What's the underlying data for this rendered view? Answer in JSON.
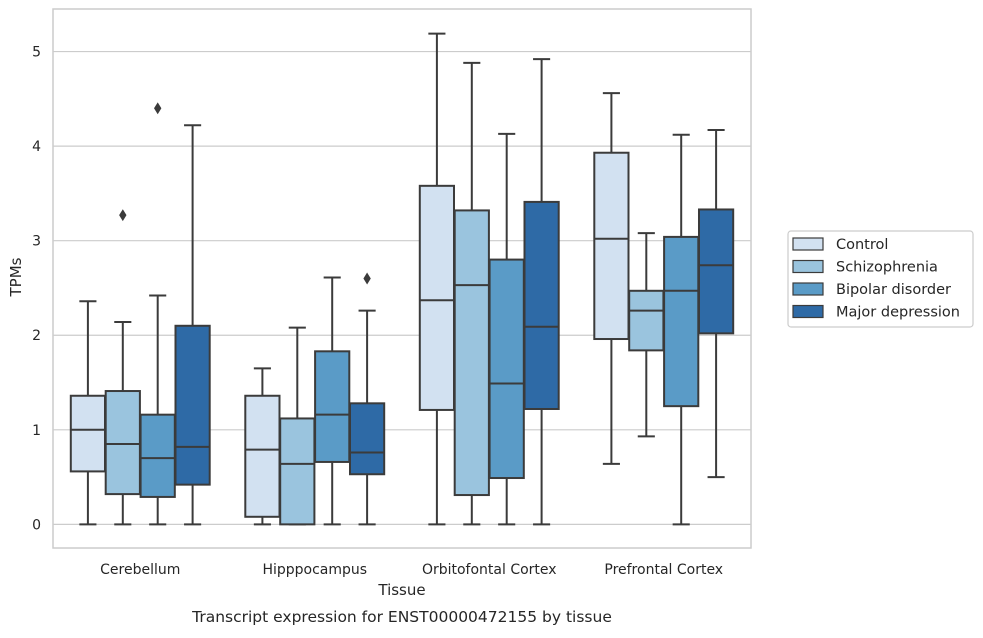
{
  "caption": "Transcript expression for ENST00000472155 by tissue",
  "chart_data": {
    "type": "box",
    "xlabel": "Tissue",
    "ylabel": "TPMs",
    "ylim": [
      -0.25,
      5.45
    ],
    "yticks": [
      0,
      1,
      2,
      3,
      4,
      5
    ],
    "grid": "horizontal",
    "legend_position": "right",
    "categories": [
      "Cerebellum",
      "Hipppocampus",
      "Orbitofontal Cortex",
      "Prefrontal Cortex"
    ],
    "series": [
      {
        "name": "Control",
        "color": "#d2e1f1",
        "boxes": [
          {
            "whislo": 0.0,
            "q1": 0.56,
            "med": 1.0,
            "q3": 1.36,
            "whishi": 2.36,
            "fliers": []
          },
          {
            "whislo": 0.0,
            "q1": 0.08,
            "med": 0.79,
            "q3": 1.36,
            "whishi": 1.65,
            "fliers": []
          },
          {
            "whislo": 0.0,
            "q1": 1.21,
            "med": 2.37,
            "q3": 3.58,
            "whishi": 5.19,
            "fliers": []
          },
          {
            "whislo": 0.64,
            "q1": 1.96,
            "med": 3.02,
            "q3": 3.93,
            "whishi": 4.56,
            "fliers": []
          }
        ]
      },
      {
        "name": "Schizophrenia",
        "color": "#9ac4de",
        "boxes": [
          {
            "whislo": 0.0,
            "q1": 0.32,
            "med": 0.85,
            "q3": 1.41,
            "whishi": 2.14,
            "fliers": [
              3.27
            ]
          },
          {
            "whislo": 0.0,
            "q1": 0.0,
            "med": 0.64,
            "q3": 1.12,
            "whishi": 2.08,
            "fliers": []
          },
          {
            "whislo": 0.0,
            "q1": 0.31,
            "med": 2.53,
            "q3": 3.32,
            "whishi": 4.88,
            "fliers": []
          },
          {
            "whislo": 0.93,
            "q1": 1.84,
            "med": 2.26,
            "q3": 2.47,
            "whishi": 3.08,
            "fliers": []
          }
        ]
      },
      {
        "name": "Bipolar disorder",
        "color": "#5a9bc7",
        "boxes": [
          {
            "whislo": 0.0,
            "q1": 0.29,
            "med": 0.7,
            "q3": 1.16,
            "whishi": 2.42,
            "fliers": [
              4.4
            ]
          },
          {
            "whislo": 0.0,
            "q1": 0.66,
            "med": 1.16,
            "q3": 1.83,
            "whishi": 2.61,
            "fliers": []
          },
          {
            "whislo": 0.0,
            "q1": 0.49,
            "med": 1.49,
            "q3": 2.8,
            "whishi": 4.13,
            "fliers": []
          },
          {
            "whislo": 0.0,
            "q1": 1.25,
            "med": 2.47,
            "q3": 3.04,
            "whishi": 4.12,
            "fliers": []
          }
        ]
      },
      {
        "name": "Major depression",
        "color": "#2e6aa6",
        "boxes": [
          {
            "whislo": 0.0,
            "q1": 0.42,
            "med": 0.82,
            "q3": 2.1,
            "whishi": 4.22,
            "fliers": []
          },
          {
            "whislo": 0.0,
            "q1": 0.53,
            "med": 0.76,
            "q3": 1.28,
            "whishi": 2.26,
            "fliers": [
              2.6
            ]
          },
          {
            "whislo": 0.0,
            "q1": 1.22,
            "med": 2.09,
            "q3": 3.41,
            "whishi": 4.92,
            "fliers": []
          },
          {
            "whislo": 0.5,
            "q1": 2.02,
            "med": 2.74,
            "q3": 3.33,
            "whishi": 4.17,
            "fliers": []
          }
        ]
      }
    ]
  }
}
